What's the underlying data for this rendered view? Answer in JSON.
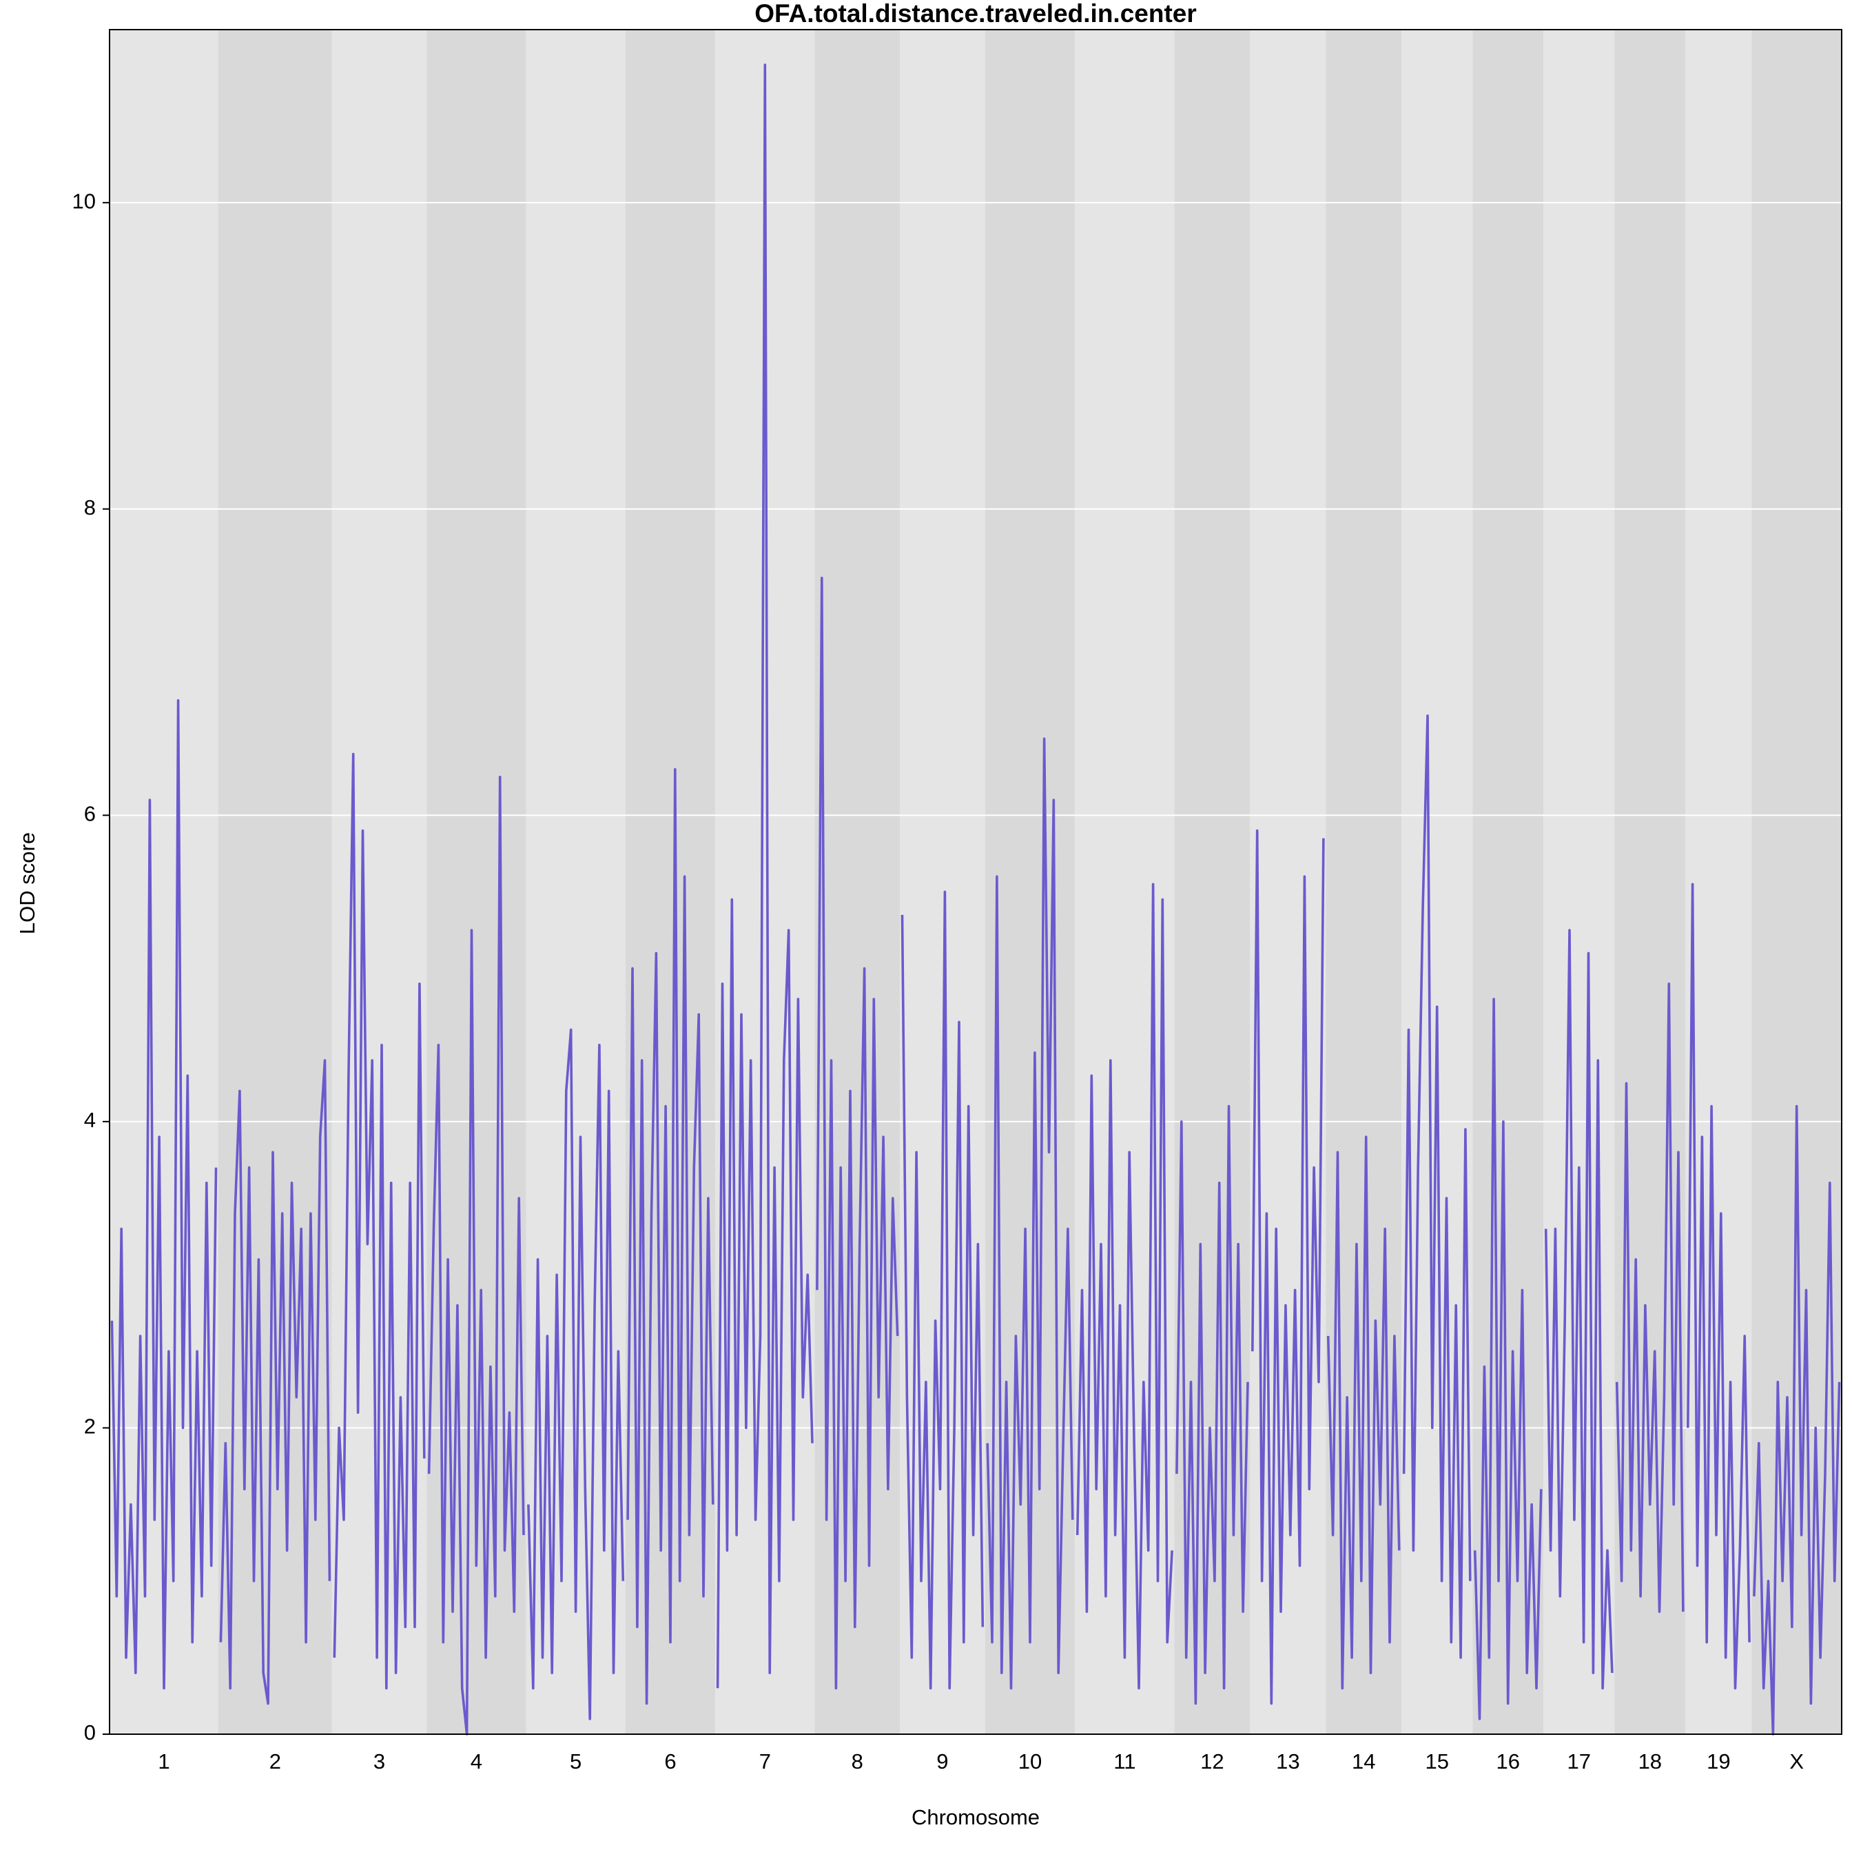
{
  "chart_data": {
    "type": "line",
    "title": "OFA.total.distance.traveled.in.center",
    "x_label": "Chromosome",
    "y_label": "LOD score",
    "color": "#6a5acd",
    "grid": true,
    "ylim": [
      0,
      11.13
    ],
    "yticks": [
      0,
      2,
      4,
      6,
      8,
      10
    ],
    "categories": [
      "1",
      "2",
      "3",
      "4",
      "5",
      "6",
      "7",
      "8",
      "9",
      "10",
      "11",
      "12",
      "13",
      "14",
      "15",
      "16",
      "17",
      "18",
      "19",
      "X"
    ],
    "values": [
      [
        2.7,
        0.9,
        3.3,
        0.5,
        1.5,
        0.4,
        2.6,
        0.9,
        6.1,
        1.4,
        3.9,
        0.3,
        2.5,
        1.0,
        6.75,
        2.0,
        4.3,
        0.6,
        2.5,
        0.9,
        3.6,
        1.1,
        3.7
      ],
      [
        0.6,
        1.9,
        0.3,
        3.4,
        4.2,
        1.6,
        3.7,
        1.0,
        3.1,
        0.4,
        0.2,
        3.8,
        1.6,
        3.4,
        1.2,
        3.6,
        2.2,
        3.3,
        0.6,
        3.4,
        1.4,
        3.9,
        4.4,
        1.0
      ],
      [
        0.5,
        2.0,
        1.4,
        4.3,
        6.4,
        2.1,
        5.9,
        3.2,
        4.4,
        0.5,
        4.5,
        0.3,
        3.6,
        0.4,
        2.2,
        0.7,
        3.6,
        0.7,
        4.9,
        1.8
      ],
      [
        1.7,
        3.3,
        4.5,
        0.6,
        3.1,
        0.8,
        2.8,
        0.3,
        0.0,
        5.25,
        1.1,
        2.9,
        0.5,
        2.4,
        0.9,
        6.25,
        1.2,
        2.1,
        0.8,
        3.5,
        1.3
      ],
      [
        1.5,
        0.3,
        3.1,
        0.5,
        2.6,
        0.4,
        3.0,
        1.0,
        4.2,
        4.6,
        0.8,
        3.9,
        1.6,
        0.1,
        2.8,
        4.5,
        1.2,
        4.2,
        0.4,
        2.5,
        1.0
      ],
      [
        1.4,
        5.0,
        0.7,
        4.4,
        0.2,
        3.4,
        5.1,
        1.2,
        4.1,
        0.6,
        6.3,
        1.0,
        5.6,
        1.3,
        3.7,
        4.7,
        0.9,
        3.5,
        1.5
      ],
      [
        0.3,
        4.9,
        1.2,
        5.45,
        1.3,
        4.7,
        2.0,
        4.4,
        1.4,
        2.6,
        10.9,
        0.4,
        3.7,
        1.0,
        4.4,
        5.25,
        1.4,
        4.8,
        2.2,
        3.0,
        1.9
      ],
      [
        2.9,
        7.55,
        1.4,
        4.4,
        0.3,
        3.7,
        1.0,
        4.2,
        0.7,
        3.2,
        5.0,
        1.1,
        4.8,
        2.2,
        3.9,
        1.6,
        3.5,
        2.6
      ],
      [
        5.35,
        2.2,
        0.5,
        3.8,
        1.0,
        2.3,
        0.3,
        2.7,
        1.6,
        5.5,
        0.3,
        2.0,
        4.65,
        0.6,
        4.1,
        1.3,
        3.2,
        0.7
      ],
      [
        1.9,
        0.6,
        5.6,
        0.4,
        2.3,
        0.3,
        2.6,
        1.5,
        3.3,
        0.6,
        4.45,
        1.6,
        6.5,
        3.8,
        6.1,
        0.4,
        1.9,
        3.3,
        1.4
      ],
      [
        1.3,
        2.9,
        0.8,
        4.3,
        1.6,
        3.2,
        0.9,
        4.4,
        1.3,
        2.8,
        0.5,
        3.8,
        1.9,
        0.3,
        2.3,
        1.2,
        5.55,
        1.0,
        5.45,
        0.6,
        1.2
      ],
      [
        1.7,
        4.0,
        0.5,
        2.3,
        0.2,
        3.2,
        0.4,
        2.0,
        1.0,
        3.6,
        0.3,
        4.1,
        1.3,
        3.2,
        0.8,
        2.3
      ],
      [
        2.5,
        5.9,
        1.0,
        3.4,
        0.2,
        3.3,
        0.8,
        2.8,
        1.3,
        2.9,
        1.1,
        5.6,
        1.6,
        3.7,
        2.3,
        5.85
      ],
      [
        2.6,
        1.3,
        3.8,
        0.3,
        2.2,
        0.5,
        3.2,
        1.0,
        3.9,
        0.4,
        2.7,
        1.5,
        3.3,
        0.6,
        2.6,
        1.2
      ],
      [
        1.7,
        4.6,
        1.2,
        3.7,
        5.4,
        6.65,
        2.0,
        4.75,
        1.0,
        3.5,
        0.6,
        2.8,
        0.5,
        3.95,
        1.0
      ],
      [
        1.2,
        0.1,
        2.4,
        0.5,
        4.8,
        1.0,
        4.0,
        0.2,
        2.5,
        1.0,
        2.9,
        0.4,
        1.5,
        0.3,
        1.6
      ],
      [
        3.3,
        1.2,
        3.3,
        0.9,
        2.7,
        5.25,
        1.4,
        3.7,
        0.6,
        5.1,
        0.4,
        4.4,
        0.3,
        1.2,
        0.4
      ],
      [
        2.3,
        1.0,
        4.25,
        1.2,
        3.1,
        0.9,
        2.8,
        1.5,
        2.5,
        0.8,
        2.2,
        4.9,
        1.5,
        3.8,
        0.8
      ],
      [
        2.0,
        5.55,
        1.1,
        3.9,
        0.6,
        4.1,
        1.3,
        3.4,
        0.5,
        2.3,
        0.3,
        1.2,
        2.6,
        0.6
      ],
      [
        0.9,
        1.9,
        0.3,
        1.0,
        0.0,
        2.3,
        1.0,
        2.2,
        0.7,
        4.1,
        1.3,
        2.9,
        0.2,
        2.0,
        0.5,
        1.7,
        3.6,
        1.0,
        2.3
      ]
    ]
  }
}
